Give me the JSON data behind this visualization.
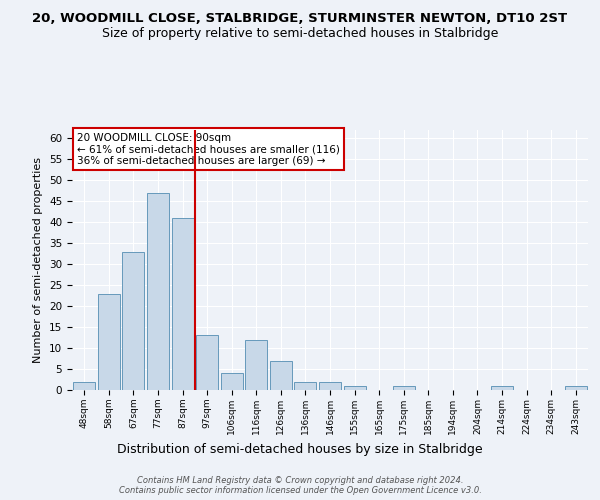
{
  "title": "20, WOODMILL CLOSE, STALBRIDGE, STURMINSTER NEWTON, DT10 2ST",
  "subtitle": "Size of property relative to semi-detached houses in Stalbridge",
  "xlabel": "Distribution of semi-detached houses by size in Stalbridge",
  "ylabel": "Number of semi-detached properties",
  "categories": [
    "48sqm",
    "58sqm",
    "67sqm",
    "77sqm",
    "87sqm",
    "97sqm",
    "106sqm",
    "116sqm",
    "126sqm",
    "136sqm",
    "146sqm",
    "155sqm",
    "165sqm",
    "175sqm",
    "185sqm",
    "194sqm",
    "204sqm",
    "214sqm",
    "224sqm",
    "234sqm",
    "243sqm"
  ],
  "values": [
    2,
    23,
    33,
    47,
    41,
    13,
    4,
    12,
    7,
    2,
    2,
    1,
    0,
    1,
    0,
    0,
    0,
    1,
    0,
    0,
    1
  ],
  "bar_color": "#c8d8e8",
  "bar_edge_color": "#6699bb",
  "background_color": "#eef2f8",
  "property_line_x": 4.5,
  "property_label": "20 WOODMILL CLOSE: 90sqm",
  "annotation_line1": "← 61% of semi-detached houses are smaller (116)",
  "annotation_line2": "36% of semi-detached houses are larger (69) →",
  "vline_color": "#cc0000",
  "annotation_box_color": "#ffffff",
  "annotation_box_edge": "#cc0000",
  "footer_line1": "Contains HM Land Registry data © Crown copyright and database right 2024.",
  "footer_line2": "Contains public sector information licensed under the Open Government Licence v3.0.",
  "ylim": [
    0,
    62
  ],
  "title_fontsize": 9.5,
  "subtitle_fontsize": 9,
  "ylabel_fontsize": 8,
  "xlabel_fontsize": 9,
  "annotation_fontsize": 7.5
}
